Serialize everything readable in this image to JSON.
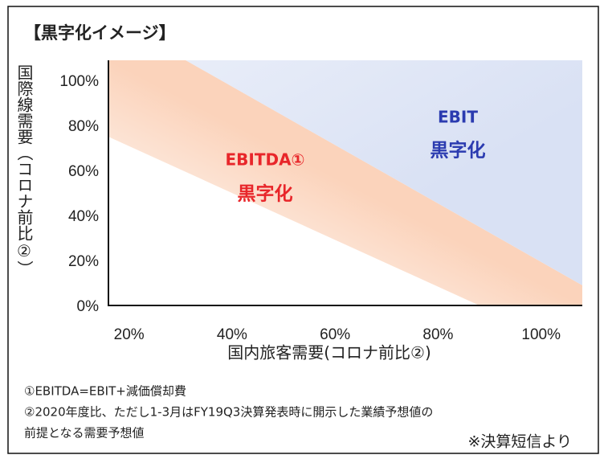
{
  "chart_data": {
    "type": "region",
    "title": "【黒字化イメージ】",
    "xlabel": "国内旅客需要(コロナ前比②)",
    "ylabel": "国際線需要（コロナ前比②）",
    "xlim": [
      16,
      108
    ],
    "ylim": [
      0,
      109
    ],
    "xticks": [
      {
        "value": 20,
        "label": "20%"
      },
      {
        "value": 40,
        "label": "40%"
      },
      {
        "value": 60,
        "label": "60%"
      },
      {
        "value": 80,
        "label": "80%"
      },
      {
        "value": 100,
        "label": "100%"
      }
    ],
    "yticks": [
      {
        "value": 0,
        "label": "0%"
      },
      {
        "value": 20,
        "label": "20%"
      },
      {
        "value": 40,
        "label": "40%"
      },
      {
        "value": 60,
        "label": "60%"
      },
      {
        "value": 80,
        "label": "80%"
      },
      {
        "value": 100,
        "label": "100%"
      }
    ],
    "regions": [
      {
        "label": [
          "EBITDA①",
          "黒字化"
        ],
        "color": "#fbd3bb",
        "text_color": "#e8262a",
        "points": [
          [
            16,
            109
          ],
          [
            31,
            109
          ],
          [
            108,
            9
          ],
          [
            108,
            0
          ],
          [
            88,
            0
          ],
          [
            16,
            75
          ]
        ]
      },
      {
        "label": [
          "EBIT",
          "黒字化"
        ],
        "color": "#d9e1f4",
        "text_color": "#2b3bb0",
        "points": [
          [
            31,
            109
          ],
          [
            108,
            109
          ],
          [
            108,
            9
          ]
        ]
      }
    ],
    "notes": [
      "①EBITDA=EBIT+減価償却費",
      "②2020年度比、ただし1-3月はFY19Q3決算発表時に開示した業績予想値の",
      "前提となる需要予想値"
    ],
    "source": "※決算短信より"
  }
}
